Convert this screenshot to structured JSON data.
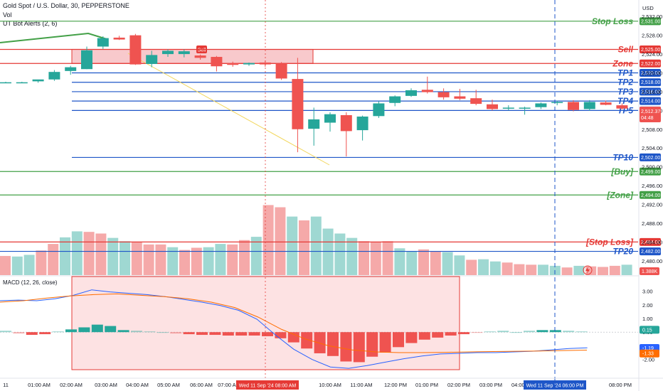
{
  "header": {
    "title": "Gold Spot / U.S. Dollar, 30, PEPPERSTONE",
    "volume_label": "Vol",
    "indicator": "UT Bot Alerts (2, 6)",
    "macd_label": "MACD (12, 26, close)",
    "currency": "USD"
  },
  "colors": {
    "up": "#26a69a",
    "down": "#ef5350",
    "green_line": "#43a047",
    "red_line": "#e53935",
    "blue_line": "#1e56c8",
    "macd_line": "#2962ff",
    "signal_line": "#ff6d00",
    "zone_fill": "#f8c9cc"
  },
  "levels": [
    {
      "label": "Stop Loss",
      "price": 2531.0,
      "tag": "2,531.00",
      "color": "green"
    },
    {
      "label": "Sell",
      "price": 2525.0,
      "tag": "2,525.00",
      "color": "red"
    },
    {
      "label": "Zone",
      "price": 2522.0,
      "tag": "2,522.00",
      "color": "red"
    },
    {
      "label": "TP1",
      "price": 2520.0,
      "tag": "2,520.00",
      "color": "blue"
    },
    {
      "label": "TP2",
      "price": 2518.0,
      "tag": "2,518.00",
      "color": "blue"
    },
    {
      "label": "TP3",
      "price": 2516.0,
      "tag": "2,516.00",
      "color": "blue"
    },
    {
      "label": "TP4",
      "price": 2514.0,
      "tag": "2,514.00",
      "color": "blue"
    },
    {
      "label": "TP5",
      "price": 2512.0,
      "tag": "2,512.00",
      "color": "blue"
    },
    {
      "label": "TP10",
      "price": 2502.0,
      "tag": "2,502.00",
      "color": "blue"
    },
    {
      "label": "[Buy]",
      "price": 2499.0,
      "tag": "2,499.00",
      "color": "green"
    },
    {
      "label": "[Zone]",
      "price": 2494.0,
      "tag": "2,494.00",
      "color": "green"
    },
    {
      "label": "[Stop Loss]",
      "price": 2484.0,
      "tag": "2,484.00",
      "color": "red"
    },
    {
      "label": "TP20",
      "price": 2482.0,
      "tag": "2,482.00",
      "color": "blue"
    }
  ],
  "chart_data": {
    "type": "candlestick",
    "title": "Gold Spot / U.S. Dollar, 30, PEPPERSTONE",
    "price_ticks": [
      "2,532.00",
      "2,528.00",
      "2,524.00",
      "2,520.00",
      "2,516.00",
      "2,512.00",
      "2,508.00",
      "2,504.00",
      "2,500.00",
      "2,496.00",
      "2,492.00",
      "2,488.00",
      "2,484.00",
      "2,480.00"
    ],
    "time_ticks": [
      "11",
      "01:00 AM",
      "02:00 AM",
      "03:00 AM",
      "04:00 AM",
      "05:00 AM",
      "06:00 AM",
      "07:00 AM",
      "10:00 AM",
      "11:00 AM",
      "12:00 PM",
      "01:00 PM",
      "02:00 PM",
      "03:00 PM",
      "04:00 PM",
      "08:00 PM"
    ],
    "crosshair_labels": [
      "Wed 11 Sep '24   08:00 AM",
      "Wed 11 Sep '24   06:00 PM"
    ],
    "current_price": {
      "value": "2,512.37",
      "countdown": "04:48"
    },
    "ohlc": [
      {
        "o": 2518.0,
        "h": 2518.1,
        "l": 2517.9,
        "c": 2518.0
      },
      {
        "o": 2518.0,
        "h": 2518.1,
        "l": 2517.9,
        "c": 2518.0
      },
      {
        "o": 2518.2,
        "h": 2518.5,
        "l": 2517.9,
        "c": 2518.6
      },
      {
        "o": 2518.6,
        "h": 2520.6,
        "l": 2518.3,
        "c": 2520.2
      },
      {
        "o": 2520.4,
        "h": 2521.5,
        "l": 2519.6,
        "c": 2521.2
      },
      {
        "o": 2520.8,
        "h": 2525.6,
        "l": 2520.8,
        "c": 2524.8
      },
      {
        "o": 2525.6,
        "h": 2527.8,
        "l": 2525.1,
        "c": 2527.4
      },
      {
        "o": 2527.5,
        "h": 2527.9,
        "l": 2527.0,
        "c": 2527.1
      },
      {
        "o": 2528.0,
        "h": 2528.3,
        "l": 2521.7,
        "c": 2521.8
      },
      {
        "o": 2521.9,
        "h": 2524.7,
        "l": 2521.2,
        "c": 2523.8
      },
      {
        "o": 2524.0,
        "h": 2525.0,
        "l": 2523.4,
        "c": 2524.7
      },
      {
        "o": 2524.0,
        "h": 2525.0,
        "l": 2523.3,
        "c": 2524.6
      },
      {
        "o": 2523.7,
        "h": 2523.9,
        "l": 2522.8,
        "c": 2523.2
      },
      {
        "o": 2523.4,
        "h": 2523.6,
        "l": 2520.3,
        "c": 2521.4
      },
      {
        "o": 2522.1,
        "h": 2522.4,
        "l": 2521.3,
        "c": 2521.7
      },
      {
        "o": 2521.8,
        "h": 2522.2,
        "l": 2521.5,
        "c": 2522.1
      },
      {
        "o": 2522.2,
        "h": 2522.6,
        "l": 2521.3,
        "c": 2521.8
      },
      {
        "o": 2522.0,
        "h": 2522.3,
        "l": 2518.5,
        "c": 2518.8
      },
      {
        "o": 2518.7,
        "h": 2523.2,
        "l": 2503.1,
        "c": 2508.0
      },
      {
        "o": 2508.1,
        "h": 2512.6,
        "l": 2504.5,
        "c": 2510.1
      },
      {
        "o": 2509.4,
        "h": 2511.6,
        "l": 2507.5,
        "c": 2511.2
      },
      {
        "o": 2511.0,
        "h": 2511.6,
        "l": 2502.2,
        "c": 2507.6
      },
      {
        "o": 2507.8,
        "h": 2510.9,
        "l": 2505.6,
        "c": 2510.7
      },
      {
        "o": 2510.8,
        "h": 2514.0,
        "l": 2510.4,
        "c": 2513.5
      },
      {
        "o": 2513.6,
        "h": 2515.2,
        "l": 2512.9,
        "c": 2515.0
      },
      {
        "o": 2515.1,
        "h": 2516.7,
        "l": 2514.9,
        "c": 2516.3
      },
      {
        "o": 2516.4,
        "h": 2519.2,
        "l": 2515.6,
        "c": 2515.9
      },
      {
        "o": 2515.9,
        "h": 2516.7,
        "l": 2514.3,
        "c": 2514.8
      },
      {
        "o": 2515.0,
        "h": 2516.6,
        "l": 2514.2,
        "c": 2514.5
      },
      {
        "o": 2514.6,
        "h": 2516.4,
        "l": 2513.1,
        "c": 2513.4
      },
      {
        "o": 2513.3,
        "h": 2514.3,
        "l": 2512.0,
        "c": 2512.3
      },
      {
        "o": 2512.5,
        "h": 2513.1,
        "l": 2512.0,
        "c": 2512.6
      },
      {
        "o": 2512.5,
        "h": 2512.8,
        "l": 2511.1,
        "c": 2512.6
      },
      {
        "o": 2512.7,
        "h": 2513.7,
        "l": 2512.3,
        "c": 2513.5
      },
      {
        "o": 2513.6,
        "h": 2514.1,
        "l": 2513.1,
        "c": 2513.8
      },
      {
        "o": 2513.8,
        "h": 2514.2,
        "l": 2511.8,
        "c": 2512.1
      },
      {
        "o": 2512.3,
        "h": 2514.2,
        "l": 2511.9,
        "c": 2513.8
      },
      {
        "o": 2513.7,
        "h": 2514.1,
        "l": 2513.1,
        "c": 2513.2
      },
      {
        "o": 2513.1,
        "h": 2513.5,
        "l": 2512.2,
        "c": 2512.4
      }
    ],
    "volume": {
      "label": "1.388K",
      "values": [
        350,
        340,
        370,
        450,
        570,
        690,
        800,
        790,
        760,
        680,
        620,
        600,
        560,
        560,
        510,
        460,
        500,
        510,
        570,
        560,
        640,
        700,
        1280,
        1240,
        1070,
        1000,
        1070,
        850,
        760,
        680,
        620,
        610,
        620,
        490,
        440,
        470,
        440,
        420,
        360,
        280,
        290,
        250,
        230,
        200,
        190,
        190,
        170,
        140,
        170,
        160,
        150,
        170,
        190,
        120,
        140,
        110,
        110,
        120,
        100,
        80,
        80,
        70
      ],
      "up": [
        false,
        true,
        true,
        false,
        false,
        true,
        true,
        false,
        false,
        true,
        true,
        false,
        false,
        false,
        true,
        false,
        false,
        true,
        true,
        false,
        false,
        true,
        false,
        false,
        true,
        false,
        true,
        true,
        true,
        true,
        false,
        false,
        false,
        true,
        true,
        false,
        false,
        true,
        true,
        false,
        true,
        true,
        false,
        false,
        false,
        true,
        true,
        false,
        true,
        false,
        false,
        false,
        true,
        true,
        true,
        true,
        false,
        true,
        false,
        true,
        false,
        false
      ]
    },
    "macd": {
      "ticks": [
        "3.00",
        "2.00",
        "1.00",
        "0.00",
        "-1.00",
        "-2.00"
      ],
      "histogram": [
        0.1,
        -0.1,
        -0.2,
        -0.15,
        0.05,
        0.2,
        0.35,
        0.55,
        0.45,
        0.15,
        0.1,
        0.05,
        0.0,
        -0.1,
        -0.15,
        -0.2,
        -0.2,
        -0.25,
        -0.25,
        -0.25,
        -0.3,
        -0.45,
        -0.75,
        -1.2,
        -1.55,
        -1.75,
        -2.15,
        -2.2,
        -1.8,
        -1.5,
        -1.1,
        -0.8,
        -0.55,
        -0.4,
        -0.25,
        -0.15,
        -0.05,
        0.05,
        0.1,
        0.0,
        0.1,
        0.15,
        0.15,
        0.1,
        0.05
      ],
      "macd_line": [
        2.3,
        2.35,
        2.3,
        2.45,
        2.7,
        3.1,
        2.95,
        2.85,
        2.75,
        2.6,
        2.4,
        2.2,
        1.95,
        1.6,
        0.95,
        -0.2,
        -1.25,
        -2.0,
        -2.55,
        -2.65,
        -2.45,
        -2.2,
        -1.95,
        -1.75,
        -1.6,
        -1.55,
        -1.5,
        -1.5,
        -1.45,
        -1.4,
        -1.3,
        -1.2,
        -1.15
      ],
      "signal_line": [
        2.2,
        2.3,
        2.5,
        2.65,
        2.75,
        2.8,
        2.7,
        2.6,
        2.45,
        2.2,
        1.8,
        1.1,
        0.2,
        -0.5,
        -1.0,
        -1.3,
        -1.45,
        -1.5,
        -1.5,
        -1.48,
        -1.45,
        -1.42,
        -1.4,
        -1.38,
        -1.35,
        -1.32
      ],
      "values": [
        "0.15",
        "-1.19",
        "-1.33"
      ]
    }
  }
}
